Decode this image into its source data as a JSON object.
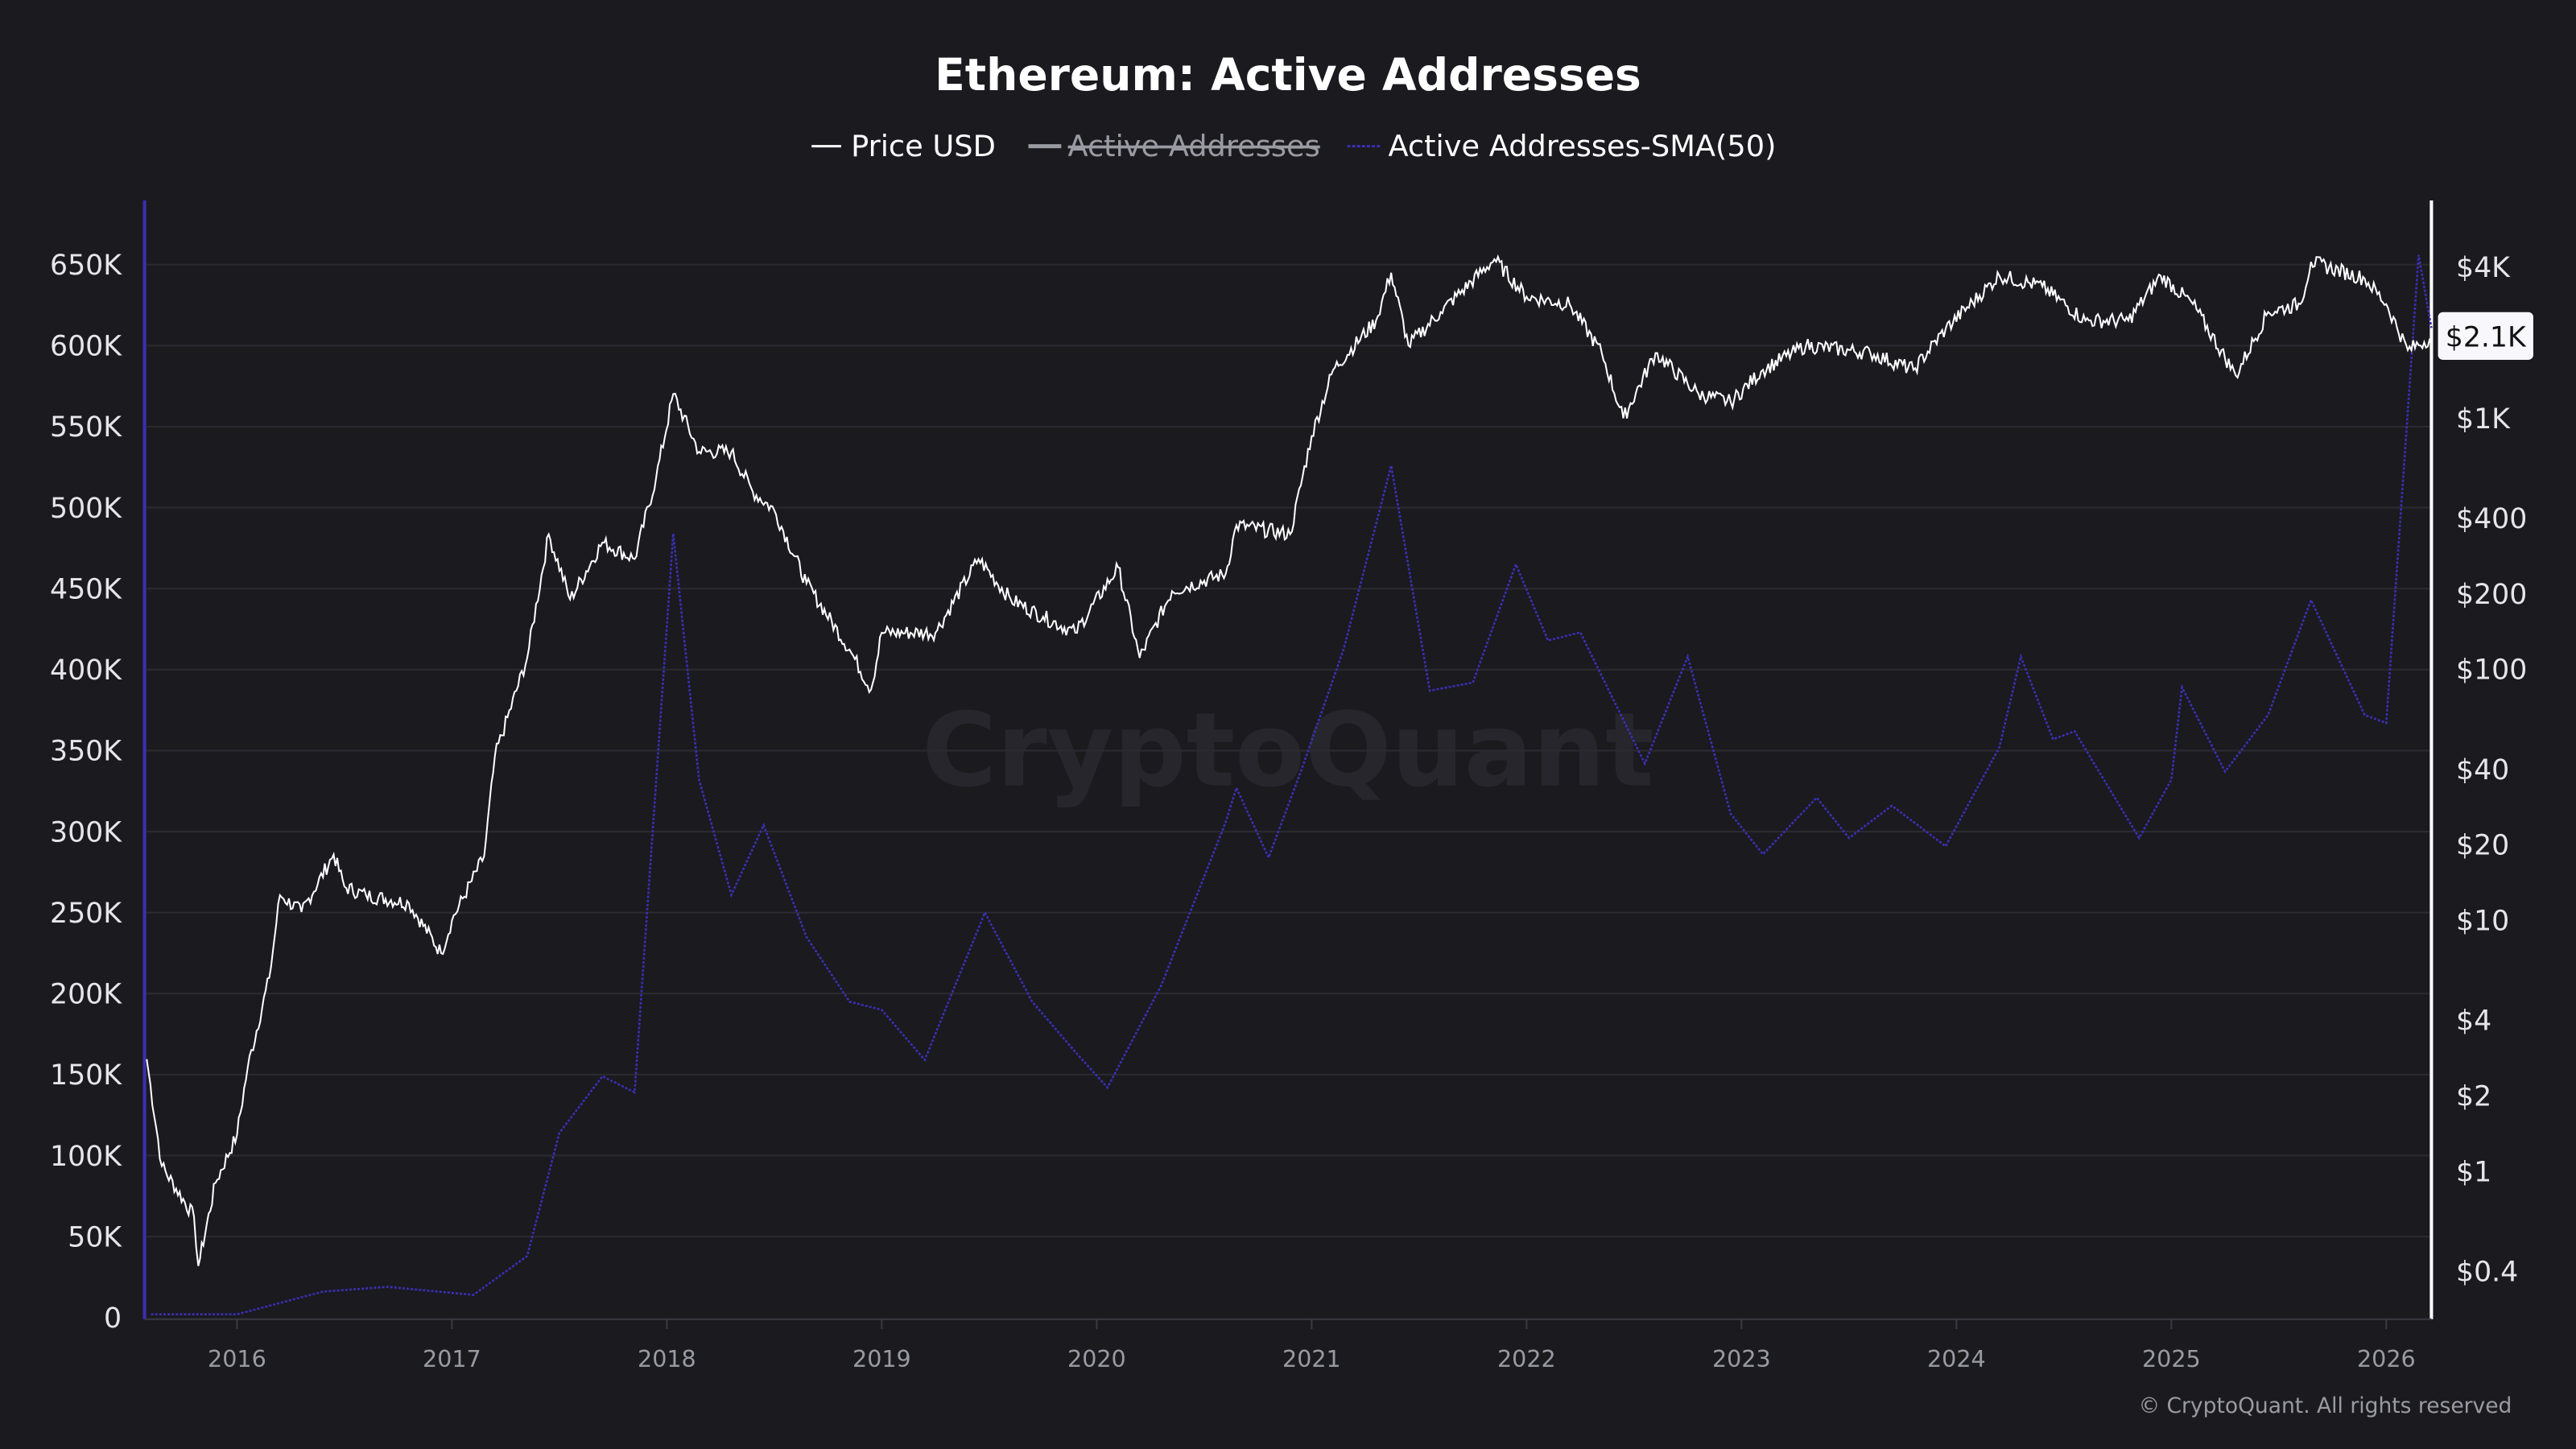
{
  "chart_data": {
    "type": "line",
    "title": "Ethereum: Active Addresses",
    "legend_placement": "top-center",
    "legend": [
      {
        "name": "Price USD",
        "color": "#ffffff",
        "hidden": false
      },
      {
        "name": "Active Addresses",
        "color": "#9a9aa2",
        "hidden": true
      },
      {
        "name": "Active Addresses-SMA(50)",
        "color": "#3b2fb0",
        "hidden": false,
        "style": "dotted"
      }
    ],
    "left_axis": {
      "ticks": [
        "0",
        "50K",
        "100K",
        "150K",
        "200K",
        "250K",
        "300K",
        "350K",
        "400K",
        "450K",
        "500K",
        "550K",
        "600K",
        "650K"
      ],
      "range": [
        0,
        680000
      ]
    },
    "right_axis": {
      "scale": "log",
      "ticks": [
        "$0.4",
        "$1",
        "$2",
        "$4",
        "$10",
        "$20",
        "$40",
        "$100",
        "$200",
        "$400",
        "$1K",
        "$4K"
      ],
      "tick_values": [
        0.4,
        1,
        2,
        4,
        10,
        20,
        40,
        100,
        200,
        400,
        1000,
        4000
      ],
      "current_label": "$2.1K",
      "current_value": 2100
    },
    "x_axis": {
      "ticks": [
        "2016",
        "2017",
        "2018",
        "2019",
        "2020",
        "2021",
        "2022",
        "2023",
        "2024",
        "2025",
        "2026"
      ],
      "range": [
        2015.57,
        2026.21
      ]
    },
    "grid": true,
    "watermark": "CryptoQuant",
    "copyright": "© CryptoQuant. All rights reserved",
    "series": [
      {
        "name": "Price USD",
        "axis": "right",
        "x": [
          2015.58,
          2015.65,
          2015.8,
          2015.82,
          2015.9,
          2016.0,
          2016.05,
          2016.15,
          2016.2,
          2016.3,
          2016.45,
          2016.5,
          2016.6,
          2016.8,
          2016.95,
          2017.0,
          2017.15,
          2017.2,
          2017.35,
          2017.45,
          2017.55,
          2017.7,
          2017.85,
          2017.95,
          2018.03,
          2018.15,
          2018.3,
          2018.4,
          2018.5,
          2018.65,
          2018.85,
          2018.95,
          2019.0,
          2019.25,
          2019.45,
          2019.6,
          2019.75,
          2019.9,
          2020.1,
          2020.2,
          2020.35,
          2020.6,
          2020.65,
          2020.9,
          2021.0,
          2021.1,
          2021.3,
          2021.37,
          2021.45,
          2021.6,
          2021.85,
          2022.0,
          2022.2,
          2022.35,
          2022.45,
          2022.6,
          2022.8,
          2022.95,
          2023.1,
          2023.3,
          2023.6,
          2023.8,
          2023.95,
          2024.2,
          2024.4,
          2024.6,
          2024.8,
          2024.95,
          2025.1,
          2025.3,
          2025.45,
          2025.6,
          2025.65,
          2025.9,
          2026.0,
          2026.1,
          2026.21
        ],
        "values": [
          2.8,
          1.05,
          0.66,
          0.42,
          0.9,
          1.4,
          2.6,
          5.9,
          12.6,
          10.8,
          18.3,
          13.6,
          12.6,
          11.7,
          7.4,
          10,
          18,
          45,
          111,
          345,
          190,
          320,
          275,
          580,
          1250,
          735,
          735,
          510,
          430,
          220,
          120,
          83,
          140,
          140,
          275,
          190,
          162,
          140,
          255,
          111,
          205,
          240,
          375,
          345,
          850,
          1560,
          2450,
          3800,
          1950,
          2650,
          4300,
          3050,
          2850,
          1820,
          1000,
          1820,
          1250,
          1160,
          1560,
          1950,
          1820,
          1560,
          2270,
          3700,
          3350,
          2450,
          2450,
          3700,
          2850,
          1480,
          2650,
          2850,
          4200,
          3600,
          2850,
          1870,
          2100
        ]
      },
      {
        "name": "Active Addresses-SMA(50)",
        "axis": "left",
        "x": [
          2015.6,
          2016.0,
          2016.4,
          2016.7,
          2017.1,
          2017.35,
          2017.5,
          2017.7,
          2017.85,
          2018.03,
          2018.15,
          2018.3,
          2018.45,
          2018.65,
          2018.85,
          2019.0,
          2019.2,
          2019.48,
          2019.7,
          2019.9,
          2020.05,
          2020.3,
          2020.6,
          2020.65,
          2020.8,
          2020.95,
          2021.15,
          2021.37,
          2021.55,
          2021.75,
          2021.95,
          2022.1,
          2022.25,
          2022.55,
          2022.75,
          2022.95,
          2023.1,
          2023.35,
          2023.5,
          2023.7,
          2023.95,
          2024.2,
          2024.3,
          2024.45,
          2024.55,
          2024.85,
          2025.0,
          2025.05,
          2025.25,
          2025.45,
          2025.65,
          2025.9,
          2026.0,
          2026.15,
          2026.21
        ],
        "values": [
          2000,
          2000,
          16000,
          19000,
          14000,
          38000,
          114000,
          149000,
          139000,
          484000,
          332000,
          261000,
          304000,
          235000,
          195000,
          190000,
          159000,
          250000,
          195000,
          164000,
          142000,
          205000,
          306000,
          327000,
          284000,
          337000,
          413000,
          526000,
          387000,
          392000,
          465000,
          418000,
          423000,
          342000,
          408000,
          311000,
          286000,
          321000,
          296000,
          316000,
          291000,
          352000,
          408000,
          357000,
          362000,
          296000,
          332000,
          389000,
          337000,
          372000,
          443000,
          372000,
          367000,
          656000,
          611000
        ]
      }
    ]
  }
}
